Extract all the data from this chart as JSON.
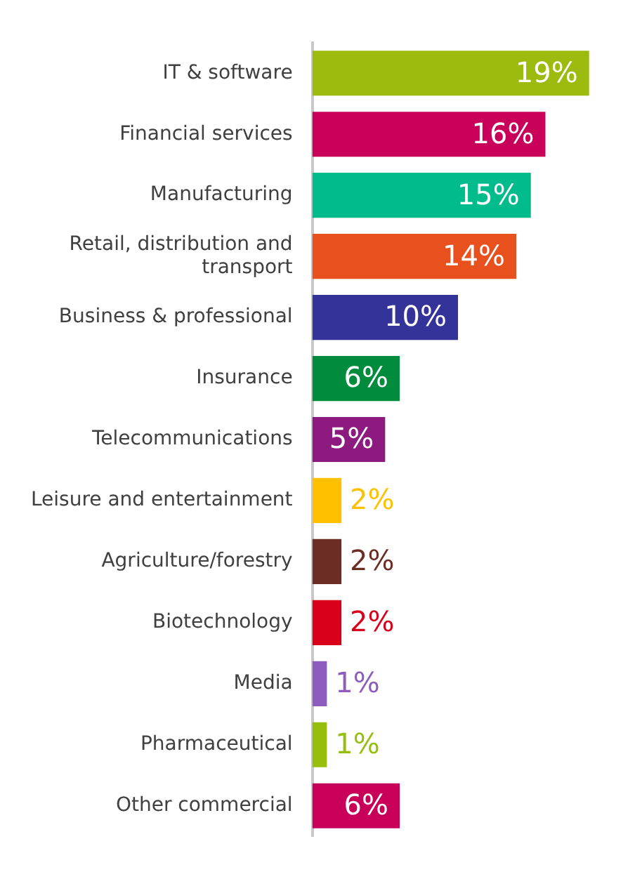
{
  "chart_data": {
    "type": "bar",
    "orientation": "horizontal",
    "categories": [
      "IT & software",
      "Financial services",
      "Manufacturing",
      "Retail, distribution and transport",
      "Business & professional",
      "Insurance",
      "Telecommunications",
      "Leisure and entertainment",
      "Agriculture/forestry",
      "Biotechnology",
      "Media",
      "Pharmaceutical",
      "Other commercial"
    ],
    "values": [
      19,
      16,
      15,
      14,
      10,
      6,
      5,
      2,
      2,
      2,
      1,
      1,
      6
    ],
    "value_labels": [
      "19%",
      "16%",
      "15%",
      "14%",
      "10%",
      "6%",
      "5%",
      "2%",
      "2%",
      "2%",
      "1%",
      "1%",
      "6%"
    ],
    "colors": [
      "#9bbb0f",
      "#c8005a",
      "#00bc8c",
      "#e8501e",
      "#333399",
      "#008c3c",
      "#8c1a7f",
      "#ffc000",
      "#6b2d24",
      "#d9001b",
      "#8e5bbf",
      "#96bf0d",
      "#c8005a"
    ],
    "grid": false,
    "legend": false
  }
}
